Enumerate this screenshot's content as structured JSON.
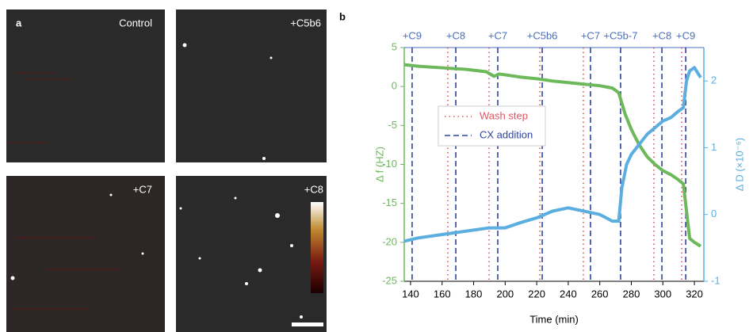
{
  "panels": {
    "a": {
      "label": "a",
      "images": [
        "Control",
        "+C5b6",
        "+C7",
        "+C8"
      ]
    }
  },
  "chart_data": {
    "type": "line",
    "panel_label": "b",
    "x_label": "Time (min)",
    "y_label": "Δ f (HZ)",
    "y2_label": "Δ D (×10⁻⁶)",
    "xlim": [
      136,
      326
    ],
    "xticks": [
      140,
      160,
      180,
      200,
      220,
      240,
      260,
      280,
      300,
      320
    ],
    "ylim": [
      -25,
      5
    ],
    "yticks": [
      -25,
      -20,
      -15,
      -10,
      -5,
      0,
      5
    ],
    "y2lim": [
      -1,
      2.5
    ],
    "y2ticks": [
      -1,
      0,
      1,
      2
    ],
    "series": [
      {
        "name": "Δ f",
        "color": "#6cb85a",
        "x": [
          136,
          145,
          160,
          175,
          188,
          193,
          196,
          200,
          210,
          220,
          230,
          240,
          250,
          260,
          268,
          272,
          276,
          280,
          285,
          290,
          295,
          300,
          305,
          310,
          313,
          315,
          317,
          320,
          324
        ],
        "values": [
          2.8,
          2.6,
          2.4,
          2.2,
          1.9,
          1.3,
          1.6,
          1.5,
          1.2,
          1.0,
          0.7,
          0.5,
          0.3,
          0.1,
          -0.2,
          -0.8,
          -3.5,
          -5.5,
          -7.5,
          -9,
          -10,
          -10.8,
          -11.3,
          -12,
          -12.5,
          -16,
          -19.5,
          -20,
          -20.5
        ]
      },
      {
        "name": "Δ D",
        "color": "#5aaee0",
        "axis": "y2",
        "x": [
          136,
          145,
          160,
          175,
          190,
          200,
          210,
          220,
          230,
          240,
          250,
          260,
          268,
          272,
          274,
          277,
          280,
          285,
          290,
          295,
          300,
          305,
          310,
          313,
          315,
          317,
          320,
          324
        ],
        "values": [
          -0.4,
          -0.35,
          -0.3,
          -0.25,
          -0.2,
          -0.2,
          -0.12,
          -0.05,
          0.05,
          0.1,
          0.05,
          0.0,
          -0.1,
          -0.1,
          0.4,
          0.75,
          0.9,
          1.05,
          1.2,
          1.3,
          1.4,
          1.45,
          1.55,
          1.6,
          2.0,
          2.15,
          2.2,
          2.05
        ]
      }
    ],
    "markers": [
      {
        "name": "Wash step",
        "color": "#e05560",
        "x": [
          163.6,
          189.8,
          222,
          249.6,
          294.3,
          312
        ]
      },
      {
        "name": "CX addition",
        "color": "#2f43a0",
        "x": [
          141,
          168.7,
          195.3,
          223.5,
          254.1,
          273.2,
          299.4,
          314.5
        ],
        "labels": [
          "+C9",
          "+C8",
          "+C7",
          "+C5b6",
          "+C7",
          "+C5b-7",
          "+C8",
          "+C9"
        ]
      }
    ]
  }
}
